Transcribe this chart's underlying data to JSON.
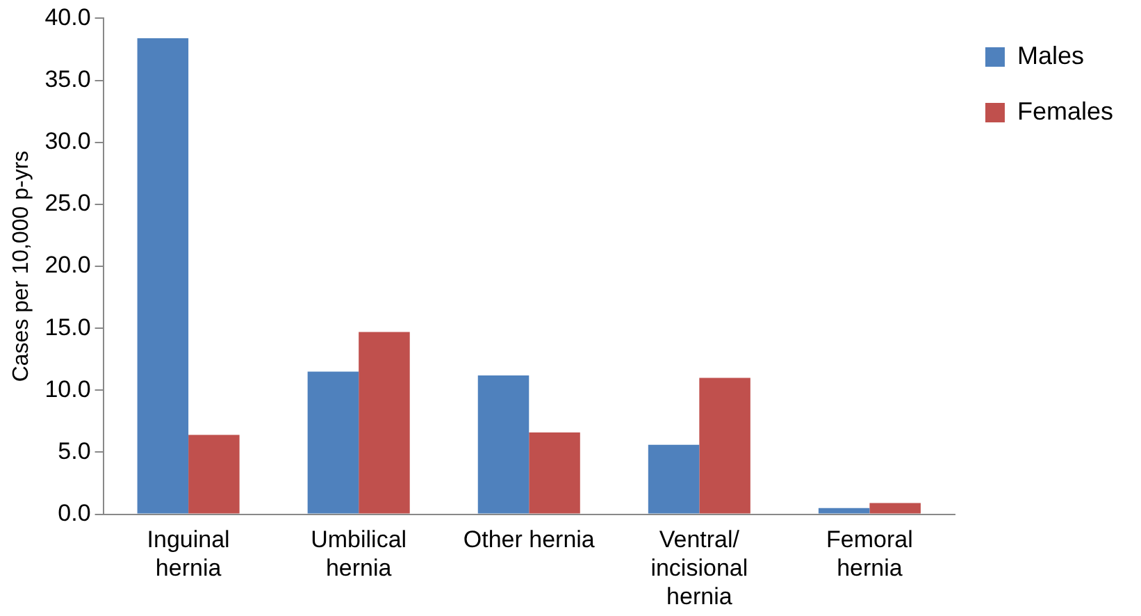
{
  "chart_data": {
    "type": "bar",
    "ylabel": "Cases per 10,000 p-yrs",
    "categories": [
      "Inguinal\nhernia",
      "Umbilical\nhernia",
      "Other hernia",
      "Ventral/\nincisional\nhernia",
      "Femoral\nhernia"
    ],
    "series": [
      {
        "name": "Males",
        "color": "#4f81bd",
        "values": [
          38.4,
          11.5,
          11.2,
          5.6,
          0.5
        ]
      },
      {
        "name": "Females",
        "color": "#c0504d",
        "values": [
          6.4,
          14.7,
          6.6,
          11.0,
          0.9
        ]
      }
    ],
    "ylim": [
      0,
      40
    ],
    "yticks": [
      {
        "value": 0,
        "label": "0.0"
      },
      {
        "value": 5,
        "label": "5.0"
      },
      {
        "value": 10,
        "label": "10.0"
      },
      {
        "value": 15,
        "label": "15.0"
      },
      {
        "value": 20,
        "label": "20.0"
      },
      {
        "value": 25,
        "label": "25.0"
      },
      {
        "value": 30,
        "label": "30.0"
      },
      {
        "value": 35,
        "label": "35.0"
      },
      {
        "value": 40,
        "label": "40.0"
      }
    ],
    "grid": false,
    "legend": "right"
  }
}
